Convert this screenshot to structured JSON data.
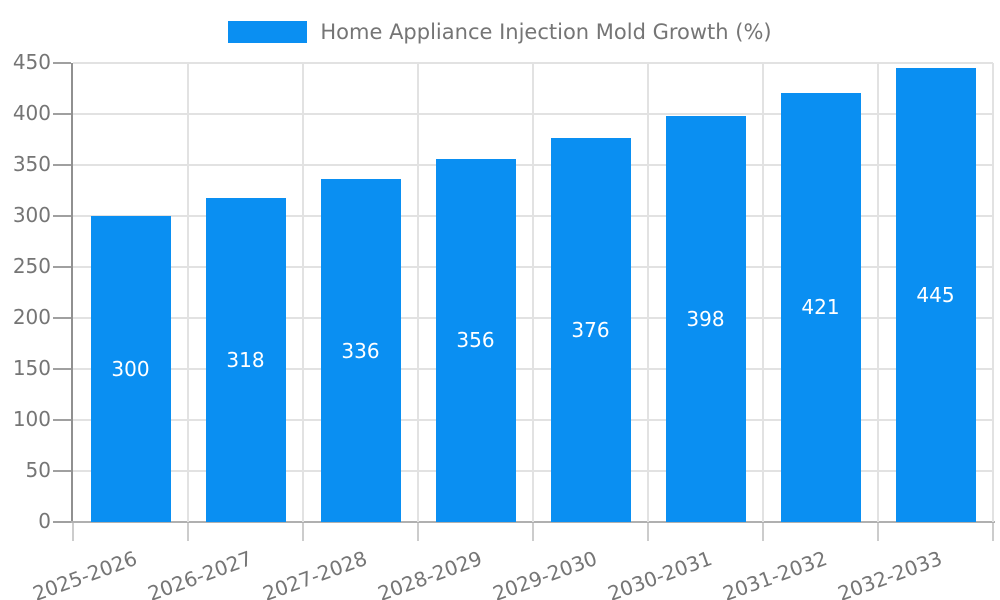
{
  "legend": {
    "label": "Home Appliance Injection Mold Growth (%)"
  },
  "chart_data": {
    "type": "bar",
    "title": "Home Appliance Injection Mold Growth (%)",
    "categories": [
      "2025-2026",
      "2026-2027",
      "2027-2028",
      "2028-2029",
      "2029-2030",
      "2030-2031",
      "2031-2032",
      "2032-2033"
    ],
    "values": [
      300,
      318,
      336,
      356,
      376,
      398,
      421,
      445
    ],
    "xlabel": "",
    "ylabel": "",
    "ylim": [
      0,
      450
    ],
    "ytick_step": 50,
    "grid": true,
    "legend_position": "top-center",
    "x_label_rotation_deg": -20,
    "value_labels": "inside-center",
    "colors": {
      "bar": "#0a8ff2",
      "value_label": "#ffffff",
      "axis_text": "#757575",
      "gridline": "#e2e2e2",
      "y_axis_line": "#909090",
      "x_axis_line": "#b0b0b0",
      "y_tick": "#a0a0a0",
      "x_tick": "#cccccc",
      "background": "#ffffff"
    }
  }
}
